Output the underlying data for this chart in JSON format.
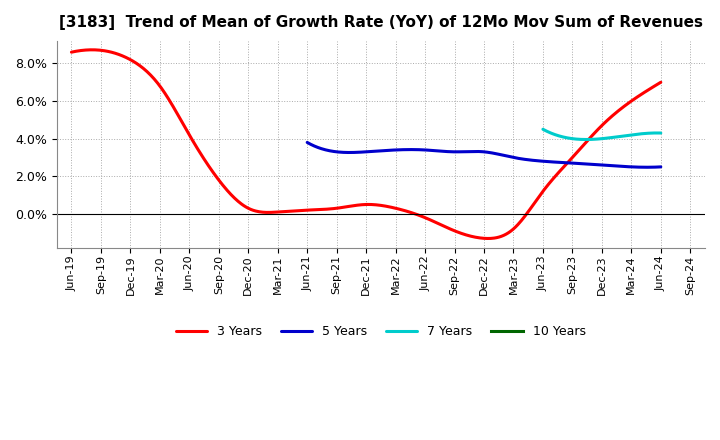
{
  "title": "[3183]  Trend of Mean of Growth Rate (YoY) of 12Mo Mov Sum of Revenues",
  "xlabels": [
    "Jun-19",
    "Sep-19",
    "Dec-19",
    "Mar-20",
    "Jun-20",
    "Sep-20",
    "Dec-20",
    "Mar-21",
    "Jun-21",
    "Sep-21",
    "Dec-21",
    "Mar-22",
    "Jun-22",
    "Sep-22",
    "Dec-22",
    "Mar-23",
    "Jun-23",
    "Sep-23",
    "Dec-23",
    "Mar-24",
    "Jun-24",
    "Sep-24"
  ],
  "series_3y": [
    0.086,
    0.087,
    0.082,
    0.068,
    0.042,
    0.018,
    0.003,
    0.001,
    0.002,
    0.003,
    0.005,
    0.003,
    -0.002,
    -0.009,
    -0.013,
    -0.008,
    0.012,
    0.03,
    0.047,
    0.06,
    0.07,
    null
  ],
  "series_5y": [
    null,
    null,
    null,
    null,
    null,
    null,
    null,
    null,
    0.038,
    0.033,
    0.033,
    0.034,
    0.034,
    0.033,
    0.033,
    0.03,
    0.028,
    0.027,
    0.026,
    0.025,
    0.025,
    null
  ],
  "series_7y": [
    null,
    null,
    null,
    null,
    null,
    null,
    null,
    null,
    null,
    null,
    null,
    null,
    null,
    null,
    null,
    null,
    0.045,
    0.04,
    0.04,
    0.042,
    0.043,
    null
  ],
  "series_10y": [
    null,
    null,
    null,
    null,
    null,
    null,
    null,
    null,
    null,
    null,
    null,
    null,
    null,
    null,
    null,
    null,
    null,
    null,
    null,
    null,
    null,
    null
  ],
  "color_3y": "#FF0000",
  "color_5y": "#0000CC",
  "color_7y": "#00CCCC",
  "color_10y": "#006600",
  "yticks": [
    0.0,
    0.02,
    0.04,
    0.06,
    0.08
  ],
  "ylim": [
    -0.018,
    0.092
  ],
  "background_color": "#ffffff",
  "grid_color": "#aaaaaa"
}
